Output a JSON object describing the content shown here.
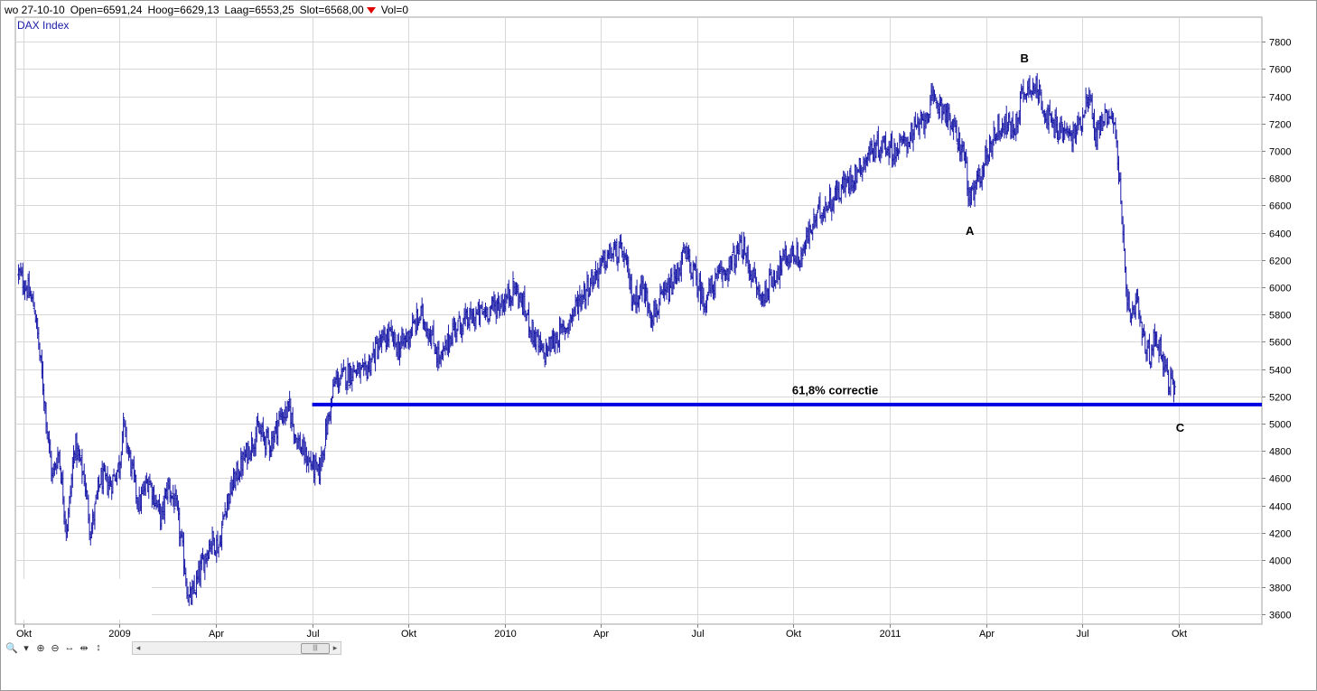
{
  "header": {
    "date": "wo 27-10-10",
    "open": "Open=6591,24",
    "high": "Hoog=6629,13",
    "low": "Laag=6553,25",
    "close": "Slot=6568,00",
    "vol": "Vol=0"
  },
  "colors": {
    "series": "#1a1aa8",
    "line": "#0000e0",
    "grid": "#d8d8d8",
    "down": "#e00000"
  },
  "toolbar": {
    "icons": [
      "zoom-icon",
      "dropdown-arrow-icon",
      "zoom-in-icon",
      "zoom-out-icon",
      "pan-horizontal-icon",
      "fit-horizontal-icon",
      "fit-vertical-icon"
    ],
    "glyphs": [
      "🔍",
      "▾",
      "⊕",
      "⊖",
      "↔",
      "⇹",
      "↕"
    ],
    "scroll_left": "◂",
    "scroll_right": "▸",
    "scroll_thumb": "|||"
  },
  "chart_data": {
    "type": "bar",
    "series_name": "DAX Index",
    "y_ticks": [
      3600,
      3800,
      4000,
      4200,
      4400,
      4600,
      4800,
      5000,
      5200,
      5400,
      5600,
      5800,
      6000,
      6200,
      6400,
      6600,
      6800,
      7000,
      7200,
      7400,
      7600,
      7800
    ],
    "ylim": [
      3530,
      7980
    ],
    "x_ticks": [
      {
        "label": "Okt",
        "t": 0
      },
      {
        "label": "2009",
        "t": 3
      },
      {
        "label": "Apr",
        "t": 6
      },
      {
        "label": "Jul",
        "t": 9
      },
      {
        "label": "Okt",
        "t": 12
      },
      {
        "label": "2010",
        "t": 15
      },
      {
        "label": "Apr",
        "t": 18
      },
      {
        "label": "Jul",
        "t": 21
      },
      {
        "label": "Okt",
        "t": 24
      },
      {
        "label": "2011",
        "t": 27
      },
      {
        "label": "Apr",
        "t": 30
      },
      {
        "label": "Jul",
        "t": 33
      },
      {
        "label": "Okt",
        "t": 36
      }
    ],
    "xlim": [
      -0.25,
      38.6
    ],
    "grid": true,
    "price_path": [
      [
        -0.15,
        6100
      ],
      [
        0.1,
        6000
      ],
      [
        0.35,
        5850
      ],
      [
        0.6,
        5300
      ],
      [
        0.9,
        4600
      ],
      [
        1.1,
        4800
      ],
      [
        1.35,
        4200
      ],
      [
        1.6,
        4850
      ],
      [
        1.9,
        4600
      ],
      [
        2.1,
        4200
      ],
      [
        2.4,
        4600
      ],
      [
        2.7,
        4550
      ],
      [
        3.0,
        4700
      ],
      [
        3.1,
        5000
      ],
      [
        3.35,
        4700
      ],
      [
        3.6,
        4400
      ],
      [
        3.9,
        4600
      ],
      [
        4.3,
        4300
      ],
      [
        4.5,
        4550
      ],
      [
        4.75,
        4400
      ],
      [
        5.0,
        4000
      ],
      [
        5.15,
        3700
      ],
      [
        5.3,
        3750
      ],
      [
        5.55,
        3950
      ],
      [
        5.85,
        4150
      ],
      [
        6.1,
        4100
      ],
      [
        6.3,
        4400
      ],
      [
        6.6,
        4600
      ],
      [
        7.0,
        4800
      ],
      [
        7.3,
        4950
      ],
      [
        7.7,
        4850
      ],
      [
        8.0,
        5050
      ],
      [
        8.3,
        5100
      ],
      [
        8.5,
        4900
      ],
      [
        8.8,
        4750
      ],
      [
        9.0,
        4700
      ],
      [
        9.2,
        4620
      ],
      [
        9.4,
        4900
      ],
      [
        9.7,
        5300
      ],
      [
        10.0,
        5350
      ],
      [
        10.3,
        5400
      ],
      [
        10.6,
        5350
      ],
      [
        11.0,
        5550
      ],
      [
        11.4,
        5650
      ],
      [
        11.7,
        5550
      ],
      [
        12.0,
        5650
      ],
      [
        12.4,
        5800
      ],
      [
        12.7,
        5650
      ],
      [
        13.0,
        5450
      ],
      [
        13.4,
        5700
      ],
      [
        13.8,
        5750
      ],
      [
        14.2,
        5800
      ],
      [
        14.6,
        5850
      ],
      [
        15.0,
        5900
      ],
      [
        15.3,
        6000
      ],
      [
        15.6,
        5850
      ],
      [
        15.9,
        5650
      ],
      [
        16.2,
        5500
      ],
      [
        16.5,
        5600
      ],
      [
        16.9,
        5700
      ],
      [
        17.3,
        5900
      ],
      [
        17.7,
        6050
      ],
      [
        18.0,
        6150
      ],
      [
        18.3,
        6250
      ],
      [
        18.7,
        6250
      ],
      [
        19.0,
        5900
      ],
      [
        19.3,
        6000
      ],
      [
        19.6,
        5800
      ],
      [
        19.9,
        5900
      ],
      [
        20.3,
        6050
      ],
      [
        20.6,
        6250
      ],
      [
        20.9,
        6100
      ],
      [
        21.2,
        5900
      ],
      [
        21.6,
        6050
      ],
      [
        22.0,
        6150
      ],
      [
        22.4,
        6300
      ],
      [
        22.7,
        6100
      ],
      [
        23.0,
        5900
      ],
      [
        23.3,
        6050
      ],
      [
        23.7,
        6200
      ],
      [
        24.0,
        6250
      ],
      [
        24.2,
        6200
      ],
      [
        24.5,
        6400
      ],
      [
        24.8,
        6550
      ],
      [
        25.2,
        6650
      ],
      [
        25.6,
        6750
      ],
      [
        26.0,
        6850
      ],
      [
        26.4,
        7000
      ],
      [
        26.8,
        7050
      ],
      [
        27.2,
        7000
      ],
      [
        27.6,
        7100
      ],
      [
        28.0,
        7200
      ],
      [
        28.3,
        7350
      ],
      [
        28.6,
        7350
      ],
      [
        28.9,
        7200
      ],
      [
        29.1,
        7100
      ],
      [
        29.35,
        6950
      ],
      [
        29.5,
        6600
      ],
      [
        29.7,
        6750
      ],
      [
        30.0,
        6950
      ],
      [
        30.3,
        7150
      ],
      [
        30.6,
        7200
      ],
      [
        30.9,
        7150
      ],
      [
        31.1,
        7400
      ],
      [
        31.4,
        7500
      ],
      [
        31.7,
        7400
      ],
      [
        32.0,
        7200
      ],
      [
        32.3,
        7150
      ],
      [
        32.7,
        7100
      ],
      [
        33.0,
        7250
      ],
      [
        33.2,
        7450
      ],
      [
        33.4,
        7100
      ],
      [
        33.7,
        7250
      ],
      [
        33.9,
        7300
      ],
      [
        34.1,
        7000
      ],
      [
        34.3,
        6200
      ],
      [
        34.5,
        5700
      ],
      [
        34.7,
        5900
      ],
      [
        34.9,
        5600
      ],
      [
        35.1,
        5500
      ],
      [
        35.3,
        5650
      ],
      [
        35.5,
        5500
      ],
      [
        35.7,
        5300
      ],
      [
        35.85,
        5250
      ],
      [
        35.9,
        5350
      ]
    ],
    "annotations": [
      {
        "text": "A",
        "t": 29.5,
        "y": 6385
      },
      {
        "text": "B",
        "t": 31.2,
        "y": 7650
      },
      {
        "text": "C",
        "t": 36.05,
        "y": 4940
      },
      {
        "text": "61,8% correctie",
        "t": 25.3,
        "y": 5215
      }
    ],
    "support_line": {
      "y": 5140,
      "t_start": 9.0,
      "t_end": 38.6
    }
  }
}
